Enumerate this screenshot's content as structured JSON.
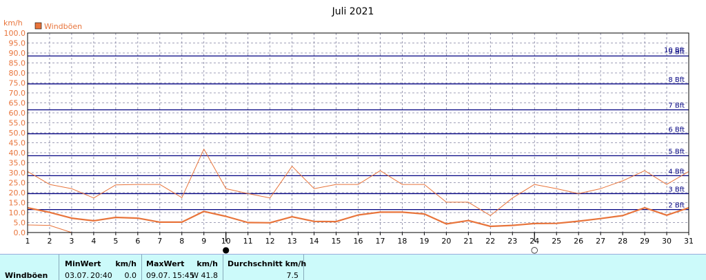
{
  "chart_data": {
    "type": "line",
    "title": "Juli 2021",
    "ylabel": "km/h",
    "ylim": [
      0,
      100
    ],
    "yticks": [
      "0.0",
      "5.0",
      "10.0",
      "15.0",
      "20.0",
      "25.0",
      "30.0",
      "35.0",
      "40.0",
      "45.0",
      "50.0",
      "55.0",
      "60.0",
      "65.0",
      "70.0",
      "75.0",
      "80.0",
      "85.0",
      "90.0",
      "95.0",
      "100.0"
    ],
    "x": [
      1,
      2,
      3,
      4,
      5,
      6,
      7,
      8,
      9,
      10,
      11,
      12,
      13,
      14,
      15,
      16,
      17,
      18,
      19,
      20,
      21,
      22,
      23,
      24,
      25,
      26,
      27,
      28,
      29,
      30,
      31
    ],
    "xticks": [
      "1",
      "2",
      "3",
      "4",
      "5",
      "6",
      "7",
      "8",
      "9",
      "10",
      "11",
      "12",
      "13",
      "14",
      "15",
      "16",
      "17",
      "18",
      "19",
      "20",
      "21",
      "22",
      "23",
      "24",
      "25",
      "26",
      "27",
      "28",
      "29",
      "30",
      "31"
    ],
    "grid": true,
    "legend": [
      {
        "name": "Windböen",
        "color": "#e8743b"
      }
    ],
    "series": [
      {
        "role": "max",
        "color": "#e8743b",
        "values": [
          30.6,
          24.1,
          22.0,
          17.3,
          23.9,
          24.1,
          24.1,
          17.5,
          41.8,
          22.0,
          19.5,
          17.3,
          33.2,
          22.0,
          24.1,
          24.1,
          31.0,
          24.1,
          24.1,
          15.2,
          15.2,
          8.5,
          17.3,
          24.1,
          22.0,
          19.5,
          22.0,
          25.9,
          31.0,
          24.1,
          30.6
        ]
      },
      {
        "role": "average",
        "color": "#e8743b",
        "values": [
          12.4,
          10.1,
          7.2,
          5.9,
          7.6,
          7.2,
          5.2,
          5.2,
          10.6,
          8.1,
          5.0,
          4.9,
          7.9,
          5.6,
          5.5,
          8.8,
          10.2,
          10.2,
          9.3,
          4.3,
          6.0,
          3.1,
          3.6,
          4.5,
          4.6,
          5.7,
          7.0,
          8.5,
          12.4,
          8.7,
          12.4
        ]
      },
      {
        "role": "min",
        "color": "#e8743b",
        "values": [
          3.8,
          3.6,
          0.0,
          null,
          null,
          null,
          null,
          null,
          null,
          null,
          null,
          null,
          null,
          null,
          null,
          null,
          null,
          null,
          null,
          null,
          null,
          null,
          null,
          null,
          null,
          null,
          null,
          null,
          null,
          null,
          null
        ]
      }
    ],
    "beaufort": [
      {
        "label": "2 Bft",
        "kmh": 11.5
      },
      {
        "label": "3 Bft",
        "kmh": 19.5
      },
      {
        "label": "4 Bft",
        "kmh": 28.5
      },
      {
        "label": "5 Bft",
        "kmh": 38.5
      },
      {
        "label": "6 Bft",
        "kmh": 49.5
      },
      {
        "label": "7 Bft",
        "kmh": 61.5
      },
      {
        "label": "8 Bft",
        "kmh": 74.5
      },
      {
        "label": "9 Bft",
        "kmh": 88.5
      },
      {
        "label": "10 Bft",
        "kmh": 102.5
      }
    ],
    "moon_phases": [
      {
        "day": 10,
        "symbol": "●",
        "phase": "new-moon"
      },
      {
        "day": 24,
        "symbol": "○",
        "phase": "full-moon"
      }
    ]
  },
  "stats": {
    "row_label": "Windböen",
    "min": {
      "header": "MinWert",
      "unit": "km/h",
      "date": "03.07.",
      "time": "20:40",
      "value": "0.0"
    },
    "max": {
      "header": "MaxWert",
      "unit": "km/h",
      "date": "09.07.",
      "time": "15:45",
      "value": "W 41.8"
    },
    "avg": {
      "header": "Durchschnitt km/h",
      "value": "7.5"
    }
  }
}
